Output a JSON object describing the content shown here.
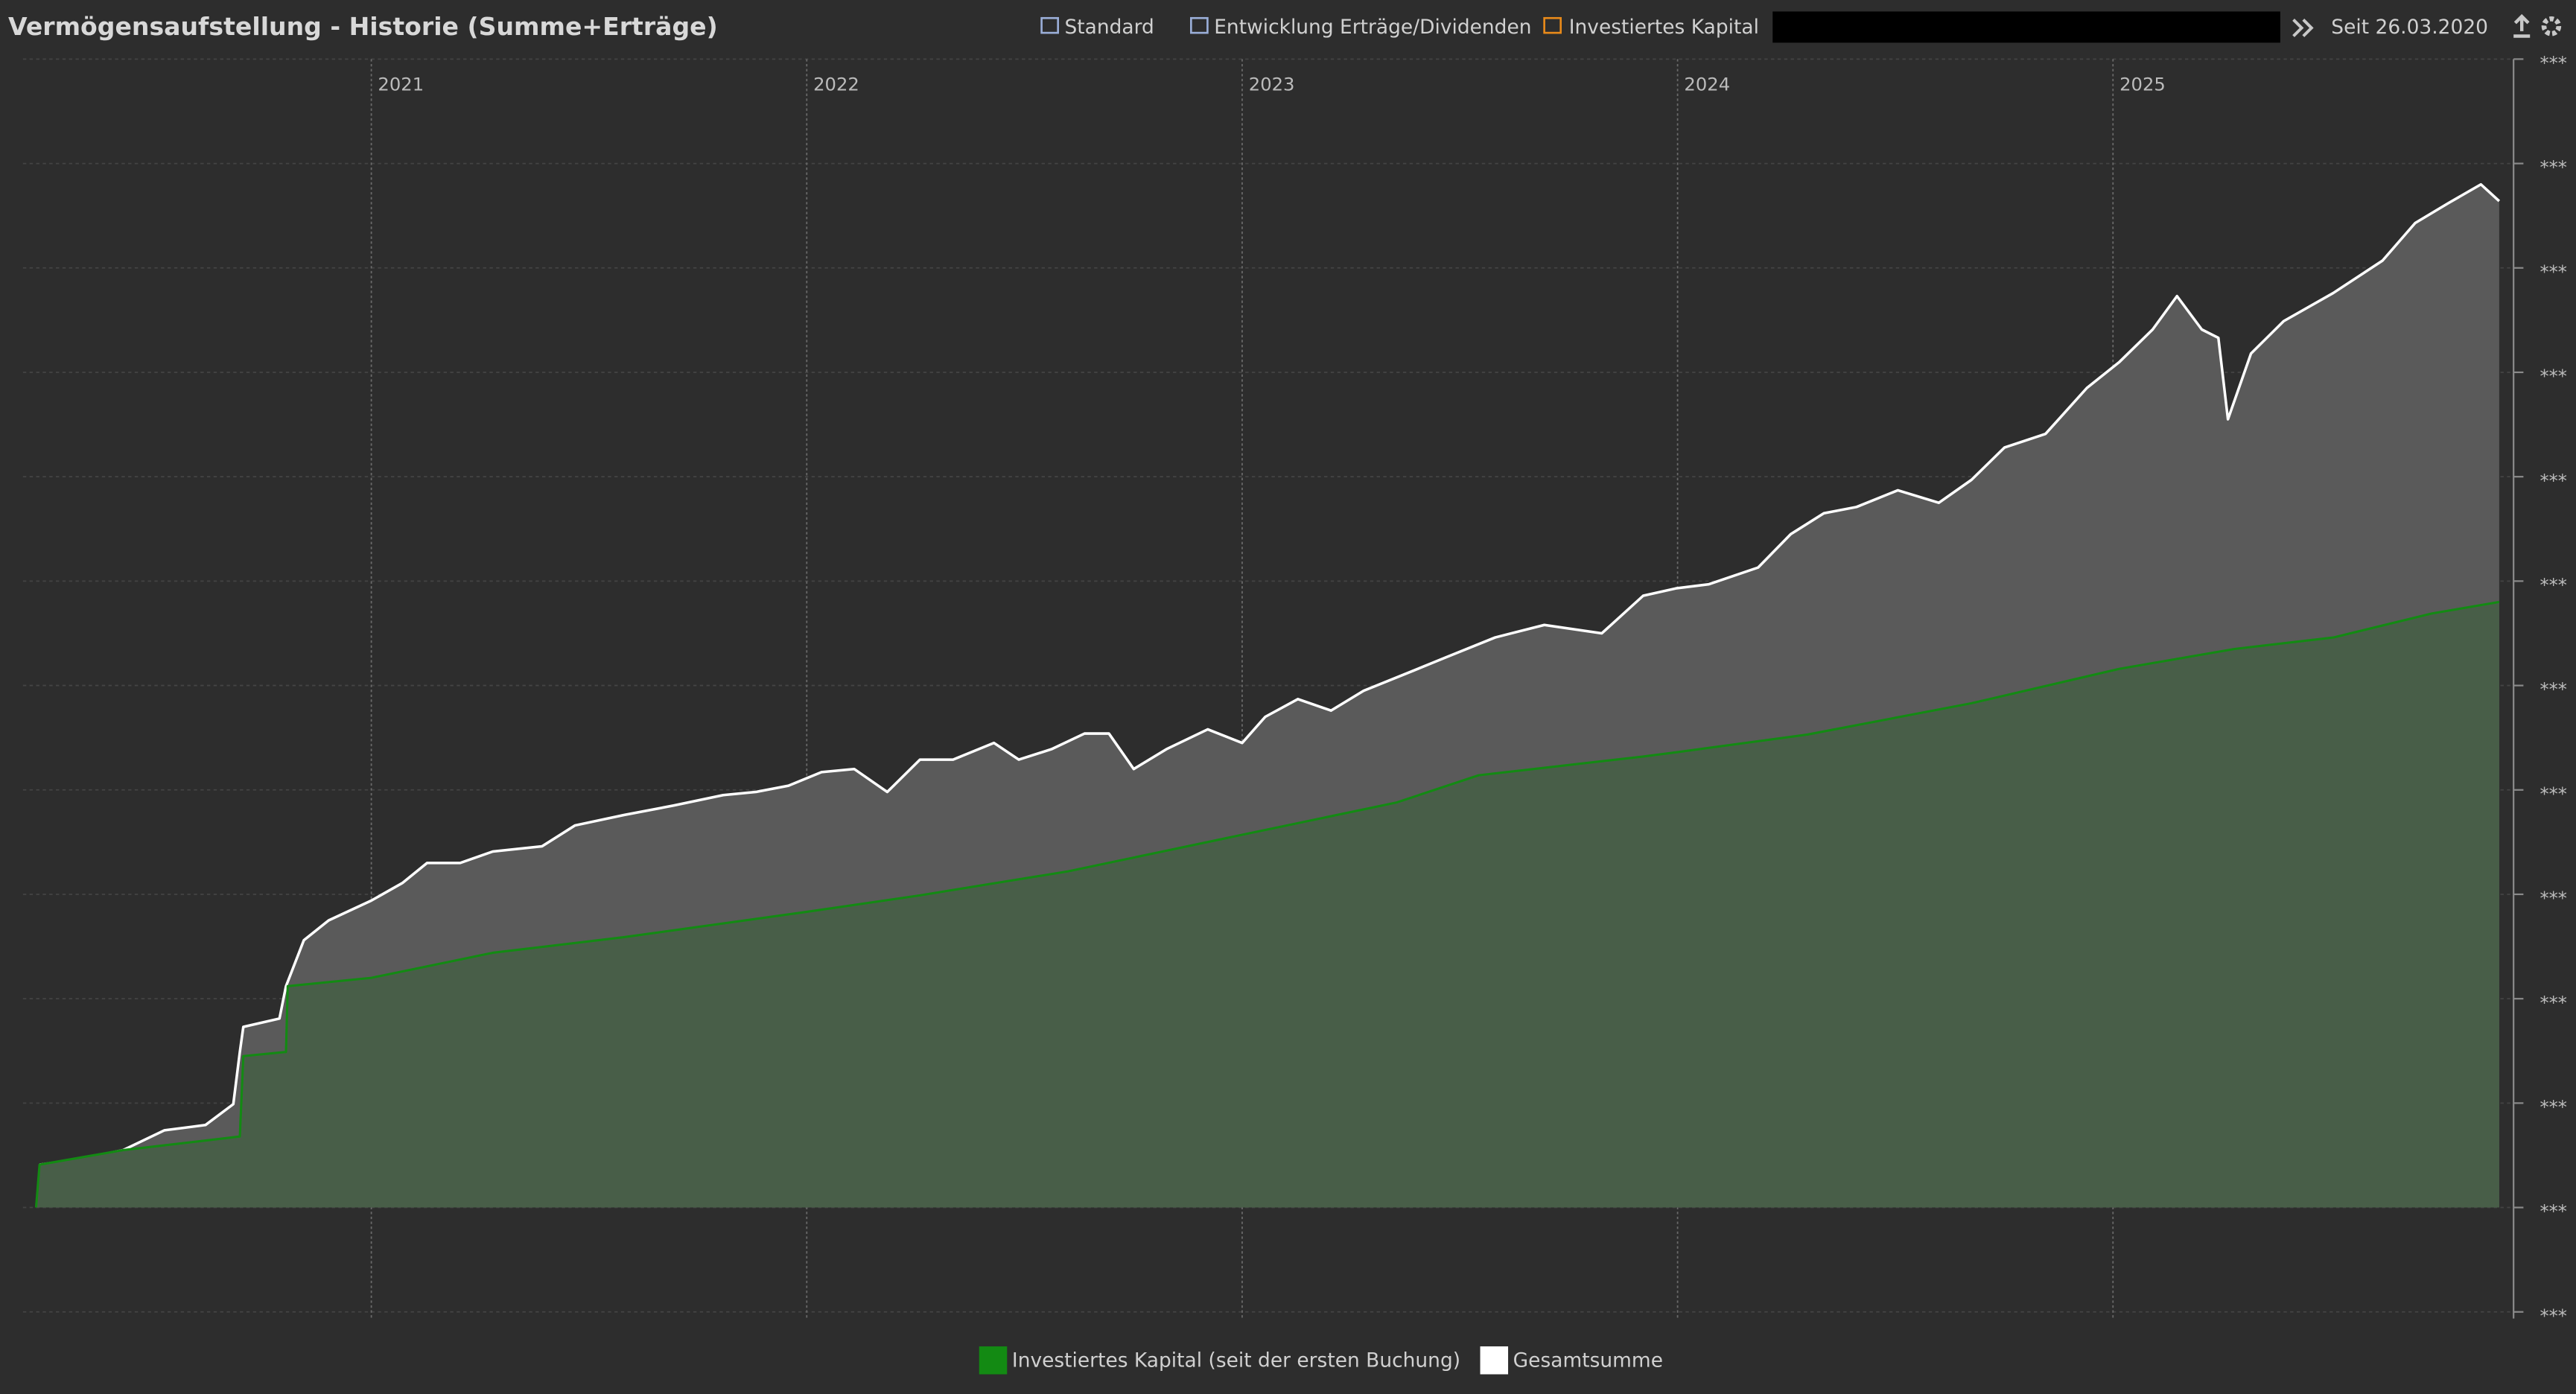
{
  "toolbar": {
    "title": "Vermögensaufstellung - Historie (Summe+Erträge)",
    "items": [
      "Standard",
      "Entwicklung Erträge/Dividenden",
      "Investiertes Kapital"
    ],
    "since": "Seit 26.03.2020"
  },
  "chart_data": {
    "type": "area",
    "xlim": [
      2020.2,
      2025.92
    ],
    "xticks": [
      2021,
      2022,
      2023,
      2024,
      2025
    ],
    "ylim": [
      -1,
      11
    ],
    "yticks": [
      {
        "value": -1,
        "label": "***"
      },
      {
        "value": 0,
        "label": "***"
      },
      {
        "value": 1,
        "label": "***"
      },
      {
        "value": 2,
        "label": "***"
      },
      {
        "value": 3,
        "label": "***"
      },
      {
        "value": 4,
        "label": "***"
      },
      {
        "value": 5,
        "label": "***"
      },
      {
        "value": 6,
        "label": "***"
      },
      {
        "value": 7,
        "label": "***"
      },
      {
        "value": 8,
        "label": "***"
      },
      {
        "value": 9,
        "label": "***"
      },
      {
        "value": 10,
        "label": "***"
      },
      {
        "value": 11,
        "label": "***"
      }
    ],
    "grid": true,
    "series": [
      {
        "name": "Investiertes Kapital (seit der ersten Buchung)",
        "color": "#138a13",
        "fill": "#485e48",
        "x": [
          2020.23,
          2020.238,
          2020.43,
          2020.698,
          2020.706,
          2020.804,
          2020.808,
          2021.0,
          2021.279,
          2021.581,
          2021.996,
          2022.26,
          2022.6,
          2023.0,
          2023.355,
          2023.543,
          2023.921,
          2023.996,
          2024.298,
          2024.675,
          2025.015,
          2025.279,
          2025.506,
          2025.732,
          2025.887
        ],
        "values": [
          0,
          0.41,
          0.55,
          0.68,
          1.45,
          1.49,
          2.12,
          2.2,
          2.44,
          2.59,
          2.83,
          2.99,
          3.22,
          3.57,
          3.88,
          4.14,
          4.32,
          4.36,
          4.53,
          4.83,
          5.16,
          5.35,
          5.46,
          5.69,
          5.8
        ]
      },
      {
        "name": "Gesamtsumme",
        "color": "#ffffff",
        "fill": "#5a5a5a",
        "x": [
          2020.238,
          2020.336,
          2020.43,
          2020.525,
          2020.619,
          2020.683,
          2020.698,
          2020.706,
          2020.789,
          2020.804,
          2020.845,
          2020.902,
          2021.0,
          2021.072,
          2021.128,
          2021.204,
          2021.279,
          2021.392,
          2021.468,
          2021.581,
          2021.694,
          2021.808,
          2021.883,
          2021.958,
          2022.034,
          2022.109,
          2022.185,
          2022.26,
          2022.336,
          2022.43,
          2022.487,
          2022.562,
          2022.638,
          2022.694,
          2022.751,
          2022.826,
          2022.921,
          2023.0,
          2023.053,
          2023.128,
          2023.204,
          2023.279,
          2023.392,
          2023.468,
          2023.581,
          2023.694,
          2023.826,
          2023.921,
          2023.996,
          2024.072,
          2024.185,
          2024.26,
          2024.336,
          2024.411,
          2024.506,
          2024.6,
          2024.675,
          2024.751,
          2024.845,
          2024.94,
          2025.015,
          2025.091,
          2025.147,
          2025.204,
          2025.242,
          2025.264,
          2025.317,
          2025.392,
          2025.506,
          2025.619,
          2025.694,
          2025.77,
          2025.845,
          2025.887
        ],
        "values": [
          0.41,
          0.47,
          0.55,
          0.74,
          0.79,
          0.99,
          1.49,
          1.73,
          1.81,
          2.12,
          2.56,
          2.75,
          2.94,
          3.11,
          3.3,
          3.3,
          3.41,
          3.46,
          3.66,
          3.76,
          3.85,
          3.95,
          3.98,
          4.04,
          4.17,
          4.2,
          3.98,
          4.29,
          4.29,
          4.45,
          4.29,
          4.39,
          4.54,
          4.54,
          4.2,
          4.39,
          4.58,
          4.45,
          4.7,
          4.87,
          4.76,
          4.95,
          5.14,
          5.27,
          5.46,
          5.58,
          5.5,
          5.86,
          5.93,
          5.97,
          6.13,
          6.45,
          6.65,
          6.71,
          6.87,
          6.75,
          6.97,
          7.28,
          7.41,
          7.85,
          8.1,
          8.41,
          8.73,
          8.41,
          8.33,
          7.55,
          8.18,
          8.49,
          8.76,
          9.07,
          9.43,
          9.62,
          9.8,
          9.64
        ]
      }
    ]
  }
}
